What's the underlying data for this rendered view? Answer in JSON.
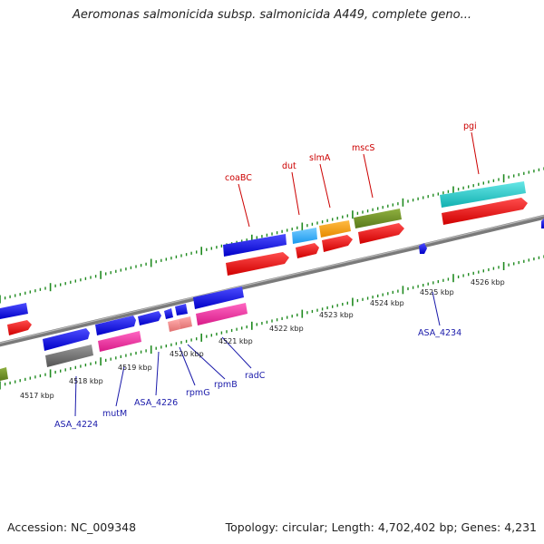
{
  "title": "Aeromonas salmonicida subsp. salmonicida A449, complete geno...",
  "footer": {
    "accession": "Accession: NC_009348",
    "summary": "Topology: circular; Length: 4,702,402 bp; Genes: 4,231"
  },
  "axis": {
    "tick_labels": [
      "4517 kbp",
      "4518 kbp",
      "4519 kbp",
      "4520 kbp",
      "4521 kbp",
      "4522 kbp",
      "4523 kbp",
      "4524 kbp",
      "4525 kbp",
      "4526 kbp"
    ]
  },
  "gene_labels_top": [
    "coaBC",
    "dut",
    "slmA",
    "mscS",
    "pgi"
  ],
  "gene_labels_bottom": [
    "ASA_4224",
    "mutM",
    "ASA_4226",
    "rpmG",
    "rpmB",
    "radC",
    "ASA_4234"
  ],
  "colors": {
    "backbone": "#808080",
    "tick": "#1f8a1f",
    "blue": "#0000e6",
    "red": "#ee0000",
    "magenta": "#ee2299",
    "cyan": "#19c8c8",
    "light_blue": "#33aaff",
    "orange": "#ff9900",
    "olive": "#6b8e23",
    "grey": "#707070",
    "pink": "#ee8888",
    "label_red": "#cc0000",
    "label_blue": "#1a1aaa"
  }
}
